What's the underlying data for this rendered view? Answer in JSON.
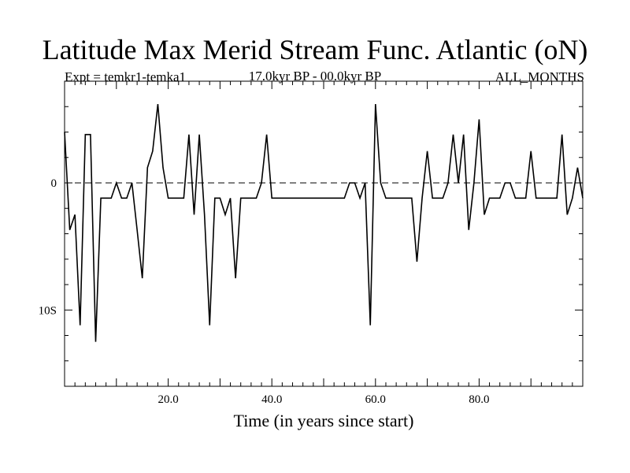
{
  "chart_data": {
    "type": "line",
    "title": "Latitude Max Merid Stream Func. Atlantic (oN)",
    "subtitle_left": "Expt = temkr1-temka1",
    "subtitle_center": "17.0kyr BP - 00.0kyr BP",
    "subtitle_right": "ALL_MONTHS",
    "xlabel": "Time (in years since start)",
    "ylabel": "",
    "xlim": [
      0,
      100
    ],
    "ylim": [
      -16,
      8
    ],
    "x_ticks": [
      {
        "value": 20,
        "label": "20.0"
      },
      {
        "value": 40,
        "label": "40.0"
      },
      {
        "value": 60,
        "label": "60.0"
      },
      {
        "value": 80,
        "label": "80.0"
      }
    ],
    "y_ticks": [
      {
        "value": 0,
        "label": "0"
      },
      {
        "value": -10,
        "label": "10S"
      }
    ],
    "reference_line": 0,
    "series": [
      {
        "name": "temkr1-temka1",
        "x": [
          0,
          1,
          2,
          3,
          4,
          5,
          6,
          7,
          8,
          9,
          10,
          11,
          12,
          13,
          14,
          15,
          16,
          17,
          18,
          19,
          20,
          21,
          22,
          23,
          24,
          25,
          26,
          27,
          28,
          29,
          30,
          31,
          32,
          33,
          34,
          35,
          36,
          37,
          38,
          39,
          40,
          41,
          42,
          43,
          44,
          45,
          46,
          47,
          48,
          49,
          50,
          51,
          52,
          53,
          54,
          55,
          56,
          57,
          58,
          59,
          60,
          61,
          62,
          63,
          64,
          65,
          66,
          67,
          68,
          69,
          70,
          71,
          72,
          73,
          74,
          75,
          76,
          77,
          78,
          79,
          80,
          81,
          82,
          83,
          84,
          85,
          86,
          87,
          88,
          89,
          90,
          91,
          92,
          93,
          94,
          95,
          96,
          97,
          98,
          99,
          100
        ],
        "values": [
          4,
          -3.7,
          -2.5,
          -11.2,
          3.8,
          3.8,
          -12.5,
          -1.2,
          -1.2,
          -1.2,
          0,
          -1.2,
          -1.2,
          0,
          -3.7,
          -7.5,
          1.2,
          2.5,
          6.2,
          1.2,
          -1.2,
          -1.2,
          -1.2,
          -1.2,
          3.8,
          -2.5,
          3.8,
          -2.5,
          -11.2,
          -1.2,
          -1.2,
          -2.5,
          -1.2,
          -7.5,
          -1.2,
          -1.2,
          -1.2,
          -1.2,
          0,
          3.8,
          -1.2,
          -1.2,
          -1.2,
          -1.2,
          -1.2,
          -1.2,
          -1.2,
          -1.2,
          -1.2,
          -1.2,
          -1.2,
          -1.2,
          -1.2,
          -1.2,
          -1.2,
          0,
          0,
          -1.2,
          0,
          -11.2,
          6.2,
          0,
          -1.2,
          -1.2,
          -1.2,
          -1.2,
          -1.2,
          -1.2,
          -6.2,
          -1.2,
          2.5,
          -1.2,
          -1.2,
          -1.2,
          0,
          3.8,
          0,
          3.8,
          -3.7,
          0,
          5,
          -2.5,
          -1.2,
          -1.2,
          -1.2,
          0,
          0,
          -1.2,
          -1.2,
          -1.2,
          2.5,
          -1.2,
          -1.2,
          -1.2,
          -1.2,
          -1.2,
          3.8,
          -2.5,
          -1.2,
          1.2,
          -1.2
        ]
      }
    ]
  }
}
